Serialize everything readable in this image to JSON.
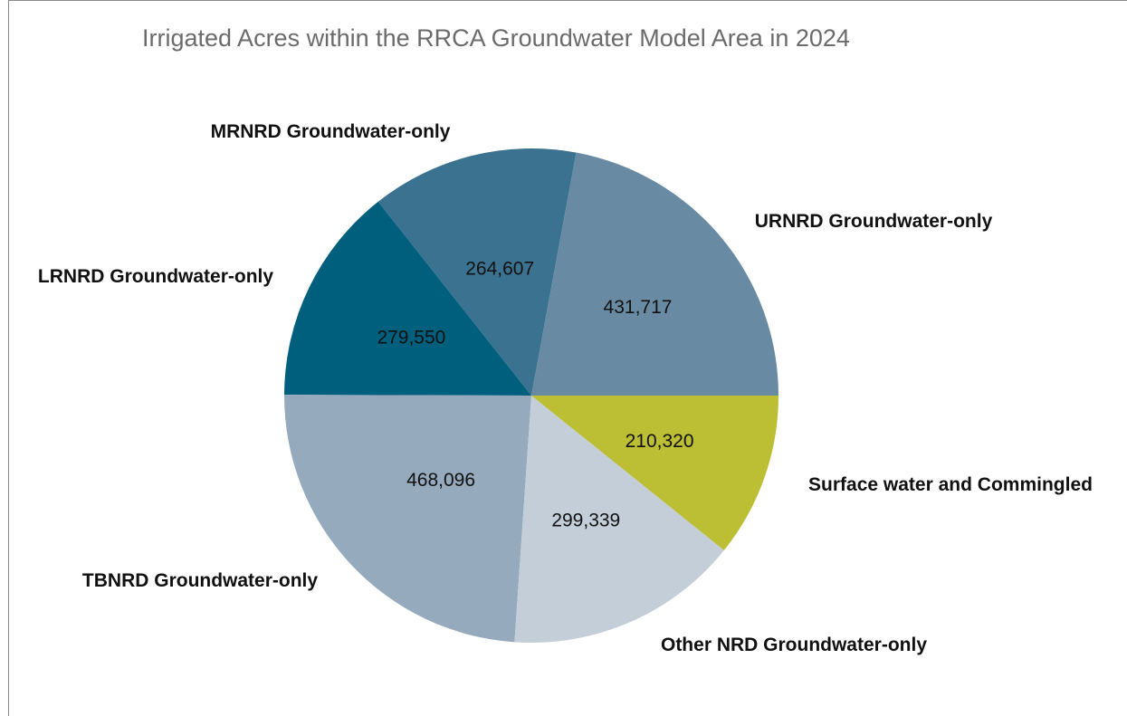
{
  "chart_data": {
    "type": "pie",
    "title": "Irrigated Acres within the RRCA Groundwater Model Area in 2024",
    "slices": [
      {
        "label": "URNRD Groundwater-only",
        "value": 431717,
        "value_label": "431,717",
        "color": "#688ba3"
      },
      {
        "label": "MRNRD Groundwater-only",
        "value": 264607,
        "value_label": "264,607",
        "color": "#3a7290"
      },
      {
        "label": "LRNRD Groundwater-only",
        "value": 279550,
        "value_label": "279,550",
        "color": "#005f7d"
      },
      {
        "label": "TBNRD Groundwater-only",
        "value": 468096,
        "value_label": "468,096",
        "color": "#95aabd"
      },
      {
        "label": "Other NRD  Groundwater-only",
        "value": 299339,
        "value_label": "299,339",
        "color": "#c3ced8"
      },
      {
        "label": "Surface water and Commingled",
        "value": 210320,
        "value_label": "210,320",
        "color": "#bcbf33"
      }
    ],
    "start_angle_deg": 0,
    "direction": "counterclockwise",
    "legend": "none"
  }
}
